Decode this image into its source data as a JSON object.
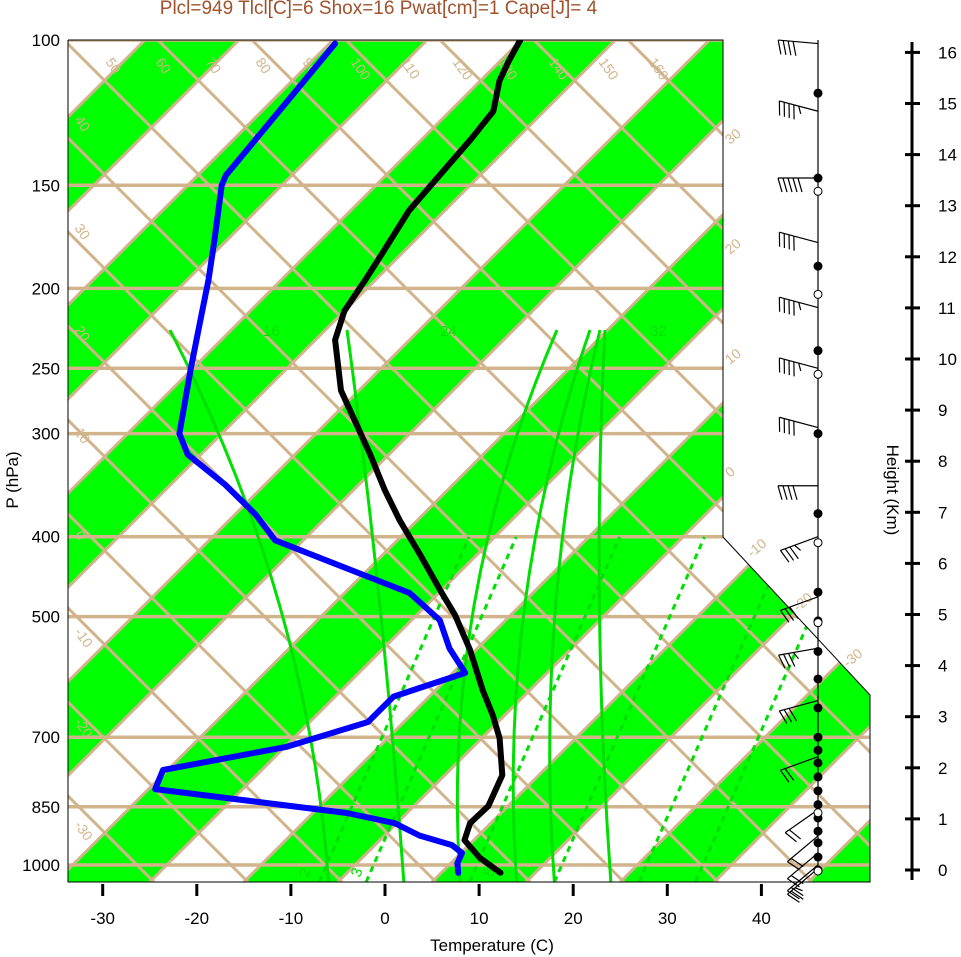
{
  "title": "Plcl=949 Tlcl[C]=6 Shox=16 Pwat[cm]=1 Cape[J]= 4",
  "colors": {
    "band": "#00ff00",
    "grid": "#d2b48c",
    "temperature": "#000000",
    "dewpoint": "#0000ff",
    "moist": "#00e000",
    "title": "#a0522d"
  },
  "chart_data": {
    "type": "line",
    "title": "Plcl=949 Tlcl[C]=6 Shox=16 Pwat[cm]=1 Cape[J]= 4",
    "xlabel": "Temperature (C)",
    "ylabel": "P (hPa)",
    "y2label": "Height (Km)",
    "xlim": [
      -34,
      36
    ],
    "ylim": [
      1050,
      100
    ],
    "x_ticks": [
      "-30",
      "-20",
      "-10",
      "0",
      "10",
      "20",
      "30",
      "40"
    ],
    "x_tick_values": [
      -30,
      -20,
      -10,
      0,
      10,
      20,
      30,
      40
    ],
    "y_ticks": [
      "100",
      "150",
      "200",
      "250",
      "300",
      "400",
      "500",
      "700",
      "850",
      "1000"
    ],
    "y_tick_values": [
      100,
      150,
      200,
      250,
      300,
      400,
      500,
      700,
      850,
      1000
    ],
    "height_ticks": [
      "0",
      "1",
      "2",
      "3",
      "4",
      "5",
      "6",
      "7",
      "8",
      "9",
      "10",
      "11",
      "12",
      "13",
      "14",
      "15",
      "16"
    ],
    "series": [
      {
        "name": "Temperature",
        "color": "#000000",
        "points": [
          [
            1022,
            11.3
          ],
          [
            980,
            7.5
          ],
          [
            933,
            4.0
          ],
          [
            890,
            2.8
          ],
          [
            848,
            2.9
          ],
          [
            778,
            1.1
          ],
          [
            702,
            -3.1
          ],
          [
            658,
            -6.3
          ],
          [
            614,
            -10.0
          ],
          [
            549,
            -15.6
          ],
          [
            498,
            -20.9
          ],
          [
            464,
            -25.2
          ],
          [
            421,
            -31.0
          ],
          [
            382,
            -36.9
          ],
          [
            351,
            -41.7
          ],
          [
            318,
            -47.0
          ],
          [
            289,
            -52.3
          ],
          [
            266,
            -56.9
          ],
          [
            231,
            -62.9
          ],
          [
            213,
            -65.0
          ],
          [
            195,
            -66.1
          ],
          [
            180,
            -67.2
          ],
          [
            161,
            -68.8
          ],
          [
            146,
            -69.3
          ],
          [
            132,
            -69.8
          ],
          [
            122,
            -70.4
          ],
          [
            112,
            -73.0
          ],
          [
            106,
            -74.1
          ],
          [
            100,
            -75.1
          ]
        ]
      },
      {
        "name": "Dewpoint",
        "color": "#0000ff",
        "points": [
          [
            1022,
            6.8
          ],
          [
            995,
            5.7
          ],
          [
            967,
            5.1
          ],
          [
            946,
            3.2
          ],
          [
            921,
            -1.3
          ],
          [
            890,
            -5.2
          ],
          [
            865,
            -11.4
          ],
          [
            809,
            -34.3
          ],
          [
            767,
            -35.5
          ],
          [
            719,
            -24.8
          ],
          [
            671,
            -18.8
          ],
          [
            625,
            -18.8
          ],
          [
            585,
            -13.7
          ],
          [
            546,
            -18.0
          ],
          [
            505,
            -22.0
          ],
          [
            468,
            -28.1
          ],
          [
            404,
            -48.0
          ],
          [
            376,
            -52.8
          ],
          [
            346,
            -59.2
          ],
          [
            318,
            -66.4
          ],
          [
            300,
            -69.5
          ],
          [
            251,
            -75.1
          ],
          [
            218,
            -79.4
          ],
          [
            195,
            -82.8
          ],
          [
            175,
            -86.3
          ],
          [
            150,
            -91.4
          ],
          [
            146,
            -92.0
          ],
          [
            101,
            -94.4
          ]
        ]
      }
    ],
    "winds": [
      {
        "p": 101,
        "dir": 275,
        "kt": 40
      },
      {
        "p": 122,
        "dir": 285,
        "kt": 45
      },
      {
        "p": 147,
        "dir": 270,
        "kt": 50
      },
      {
        "p": 176,
        "dir": 285,
        "kt": 40
      },
      {
        "p": 211,
        "dir": 285,
        "kt": 45
      },
      {
        "p": 250,
        "dir": 285,
        "kt": 45
      },
      {
        "p": 295,
        "dir": 285,
        "kt": 40
      },
      {
        "p": 347,
        "dir": 270,
        "kt": 40
      },
      {
        "p": 400,
        "dir": 250,
        "kt": 35
      },
      {
        "p": 473,
        "dir": 250,
        "kt": 30
      },
      {
        "p": 546,
        "dir": 260,
        "kt": 35
      },
      {
        "p": 632,
        "dir": 255,
        "kt": 30
      },
      {
        "p": 739,
        "dir": 250,
        "kt": 20
      },
      {
        "p": 857,
        "dir": 235,
        "kt": 20
      },
      {
        "p": 922,
        "dir": 230,
        "kt": 20
      },
      {
        "p": 967,
        "dir": 230,
        "kt": 20
      },
      {
        "p": 1000,
        "dir": 230,
        "kt": 20
      },
      {
        "p": 1010,
        "dir": 230,
        "kt": 25
      }
    ],
    "obs_levels_filled": [
      116,
      147,
      188,
      238,
      300,
      375,
      467,
      506,
      551,
      595,
      645,
      700,
      726,
      752,
      782,
      813,
      845,
      877,
      910,
      940,
      978,
      1014
    ],
    "obs_levels_open": [
      150,
      200,
      250,
      400,
      500,
      850,
      1000
    ],
    "adiabat_labels_top": [
      "50",
      "60",
      "70",
      "80",
      "90",
      "100",
      "110",
      "120",
      "130",
      "140",
      "150",
      "160"
    ],
    "left_labels": [
      "40",
      "30",
      "20",
      "10",
      "0",
      "-10",
      "-20",
      "-30"
    ],
    "right_labels": [
      "30",
      "20",
      "10",
      "0",
      "-10",
      "-20",
      "-30"
    ],
    "moist_labels": [
      "16",
      "24",
      "32"
    ],
    "mixing_labels": [
      "2",
      "3",
      "8"
    ]
  }
}
